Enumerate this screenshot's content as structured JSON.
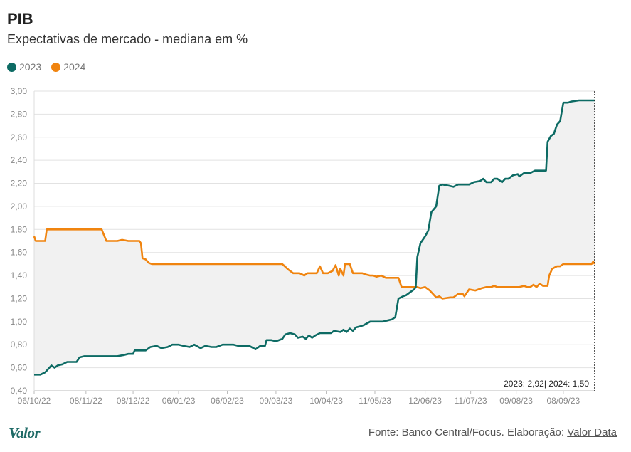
{
  "header": {
    "title": "PIB",
    "subtitle": "Expectativas de mercado - mediana em %"
  },
  "colors": {
    "series_2023": "#0d6b64",
    "series_2024": "#f0840f",
    "fill_between": "#f1f1f1",
    "grid": "#e2e2e2",
    "axis_text": "#888888"
  },
  "footer": {
    "logo": "Valor",
    "source_prefix": "Fonte: Banco Central/Focus. Elaboração: ",
    "source_link": "Valor Data"
  },
  "chart_data": {
    "type": "line",
    "title": "PIB",
    "subtitle": "Expectativas de mercado - mediana em %",
    "grid": true,
    "legend_position": "top-left",
    "ylim": [
      0.4,
      3.0
    ],
    "yticks": [
      "0,40",
      "0,60",
      "0,80",
      "1,00",
      "1,20",
      "1,40",
      "1,60",
      "1,80",
      "2,00",
      "2,20",
      "2,40",
      "2,60",
      "2,80",
      "3,00"
    ],
    "xticks": [
      "06/10/22",
      "08/11/22",
      "08/12/22",
      "06/01/23",
      "06/02/23",
      "09/03/23",
      "10/04/23",
      "11/05/23",
      "12/06/23",
      "11/07/23",
      "09/08/23",
      "08/09/23"
    ],
    "x_range": [
      "2022-10-06",
      "2023-09-28"
    ],
    "annotation": "2023: 2,92| 2024: 1,50",
    "series": [
      {
        "name": "2023",
        "points": [
          [
            "2022-10-06",
            0.54
          ],
          [
            "2022-10-10",
            0.54
          ],
          [
            "2022-10-13",
            0.56
          ],
          [
            "2022-10-17",
            0.62
          ],
          [
            "2022-10-19",
            0.6
          ],
          [
            "2022-10-21",
            0.62
          ],
          [
            "2022-10-24",
            0.63
          ],
          [
            "2022-10-27",
            0.65
          ],
          [
            "2022-10-31",
            0.65
          ],
          [
            "2022-11-02",
            0.65
          ],
          [
            "2022-11-04",
            0.69
          ],
          [
            "2022-11-07",
            0.7
          ],
          [
            "2022-11-14",
            0.7
          ],
          [
            "2022-11-21",
            0.7
          ],
          [
            "2022-11-28",
            0.7
          ],
          [
            "2022-12-02",
            0.71
          ],
          [
            "2022-12-05",
            0.72
          ],
          [
            "2022-12-08",
            0.72
          ],
          [
            "2022-12-09",
            0.75
          ],
          [
            "2022-12-12",
            0.75
          ],
          [
            "2022-12-16",
            0.75
          ],
          [
            "2022-12-19",
            0.78
          ],
          [
            "2022-12-23",
            0.79
          ],
          [
            "2022-12-26",
            0.77
          ],
          [
            "2022-12-30",
            0.78
          ],
          [
            "2023-01-02",
            0.8
          ],
          [
            "2023-01-06",
            0.8
          ],
          [
            "2023-01-09",
            0.79
          ],
          [
            "2023-01-13",
            0.78
          ],
          [
            "2023-01-16",
            0.8
          ],
          [
            "2023-01-20",
            0.77
          ],
          [
            "2023-01-23",
            0.79
          ],
          [
            "2023-01-27",
            0.78
          ],
          [
            "2023-01-30",
            0.78
          ],
          [
            "2023-02-03",
            0.8
          ],
          [
            "2023-02-06",
            0.8
          ],
          [
            "2023-02-10",
            0.8
          ],
          [
            "2023-02-13",
            0.79
          ],
          [
            "2023-02-17",
            0.79
          ],
          [
            "2023-02-20",
            0.79
          ],
          [
            "2023-02-24",
            0.76
          ],
          [
            "2023-02-27",
            0.79
          ],
          [
            "2023-03-02",
            0.79
          ],
          [
            "2023-03-03",
            0.84
          ],
          [
            "2023-03-06",
            0.84
          ],
          [
            "2023-03-09",
            0.83
          ],
          [
            "2023-03-13",
            0.85
          ],
          [
            "2023-03-15",
            0.89
          ],
          [
            "2023-03-18",
            0.9
          ],
          [
            "2023-03-21",
            0.89
          ],
          [
            "2023-03-23",
            0.86
          ],
          [
            "2023-03-26",
            0.87
          ],
          [
            "2023-03-28",
            0.85
          ],
          [
            "2023-03-30",
            0.88
          ],
          [
            "2023-04-01",
            0.86
          ],
          [
            "2023-04-03",
            0.88
          ],
          [
            "2023-04-06",
            0.9
          ],
          [
            "2023-04-10",
            0.9
          ],
          [
            "2023-04-13",
            0.9
          ],
          [
            "2023-04-15",
            0.92
          ],
          [
            "2023-04-19",
            0.91
          ],
          [
            "2023-04-21",
            0.93
          ],
          [
            "2023-04-23",
            0.91
          ],
          [
            "2023-04-25",
            0.94
          ],
          [
            "2023-04-27",
            0.92
          ],
          [
            "2023-04-29",
            0.95
          ],
          [
            "2023-05-02",
            0.96
          ],
          [
            "2023-05-04",
            0.97
          ],
          [
            "2023-05-08",
            1.0
          ],
          [
            "2023-05-12",
            1.0
          ],
          [
            "2023-05-16",
            1.0
          ],
          [
            "2023-05-19",
            1.01
          ],
          [
            "2023-05-22",
            1.02
          ],
          [
            "2023-05-24",
            1.04
          ],
          [
            "2023-05-26",
            1.2
          ],
          [
            "2023-05-29",
            1.22
          ],
          [
            "2023-05-31",
            1.23
          ],
          [
            "2023-06-03",
            1.26
          ],
          [
            "2023-06-05",
            1.28
          ],
          [
            "2023-06-06",
            1.3
          ],
          [
            "2023-06-07",
            1.56
          ],
          [
            "2023-06-09",
            1.68
          ],
          [
            "2023-06-12",
            1.74
          ],
          [
            "2023-06-14",
            1.79
          ],
          [
            "2023-06-16",
            1.95
          ],
          [
            "2023-06-19",
            2.0
          ],
          [
            "2023-06-21",
            2.18
          ],
          [
            "2023-06-23",
            2.19
          ],
          [
            "2023-06-27",
            2.18
          ],
          [
            "2023-06-30",
            2.17
          ],
          [
            "2023-07-03",
            2.19
          ],
          [
            "2023-07-07",
            2.19
          ],
          [
            "2023-07-10",
            2.19
          ],
          [
            "2023-07-13",
            2.21
          ],
          [
            "2023-07-17",
            2.22
          ],
          [
            "2023-07-19",
            2.24
          ],
          [
            "2023-07-21",
            2.21
          ],
          [
            "2023-07-24",
            2.21
          ],
          [
            "2023-07-26",
            2.24
          ],
          [
            "2023-07-28",
            2.24
          ],
          [
            "2023-07-31",
            2.21
          ],
          [
            "2023-08-02",
            2.24
          ],
          [
            "2023-08-04",
            2.24
          ],
          [
            "2023-08-07",
            2.27
          ],
          [
            "2023-08-10",
            2.28
          ],
          [
            "2023-08-11",
            2.26
          ],
          [
            "2023-08-14",
            2.29
          ],
          [
            "2023-08-18",
            2.29
          ],
          [
            "2023-08-21",
            2.31
          ],
          [
            "2023-08-25",
            2.31
          ],
          [
            "2023-08-28",
            2.31
          ],
          [
            "2023-08-29",
            2.56
          ],
          [
            "2023-08-31",
            2.61
          ],
          [
            "2023-09-02",
            2.63
          ],
          [
            "2023-09-04",
            2.71
          ],
          [
            "2023-09-06",
            2.74
          ],
          [
            "2023-09-08",
            2.9
          ],
          [
            "2023-09-11",
            2.9
          ],
          [
            "2023-09-13",
            2.91
          ],
          [
            "2023-09-18",
            2.92
          ],
          [
            "2023-09-28",
            2.92
          ]
        ]
      },
      {
        "name": "2024",
        "points": [
          [
            "2022-10-06",
            1.74
          ],
          [
            "2022-10-07",
            1.7
          ],
          [
            "2022-10-13",
            1.7
          ],
          [
            "2022-10-14",
            1.8
          ],
          [
            "2022-11-18",
            1.8
          ],
          [
            "2022-11-21",
            1.7
          ],
          [
            "2022-11-25",
            1.7
          ],
          [
            "2022-11-28",
            1.7
          ],
          [
            "2022-12-01",
            1.71
          ],
          [
            "2022-12-05",
            1.7
          ],
          [
            "2022-12-09",
            1.7
          ],
          [
            "2022-12-12",
            1.7
          ],
          [
            "2022-12-13",
            1.68
          ],
          [
            "2022-12-14",
            1.55
          ],
          [
            "2022-12-16",
            1.54
          ],
          [
            "2022-12-18",
            1.51
          ],
          [
            "2022-12-20",
            1.5
          ],
          [
            "2023-01-15",
            1.5
          ],
          [
            "2023-02-15",
            1.5
          ],
          [
            "2023-03-13",
            1.5
          ],
          [
            "2023-03-17",
            1.45
          ],
          [
            "2023-03-20",
            1.42
          ],
          [
            "2023-03-24",
            1.42
          ],
          [
            "2023-03-27",
            1.4
          ],
          [
            "2023-03-29",
            1.42
          ],
          [
            "2023-04-01",
            1.42
          ],
          [
            "2023-04-04",
            1.42
          ],
          [
            "2023-04-06",
            1.48
          ],
          [
            "2023-04-08",
            1.42
          ],
          [
            "2023-04-11",
            1.42
          ],
          [
            "2023-04-14",
            1.44
          ],
          [
            "2023-04-16",
            1.49
          ],
          [
            "2023-04-18",
            1.4
          ],
          [
            "2023-04-19",
            1.46
          ],
          [
            "2023-04-21",
            1.4
          ],
          [
            "2023-04-22",
            1.5
          ],
          [
            "2023-04-25",
            1.5
          ],
          [
            "2023-04-27",
            1.42
          ],
          [
            "2023-05-03",
            1.42
          ],
          [
            "2023-05-05",
            1.41
          ],
          [
            "2023-05-08",
            1.4
          ],
          [
            "2023-05-10",
            1.4
          ],
          [
            "2023-05-12",
            1.39
          ],
          [
            "2023-05-15",
            1.4
          ],
          [
            "2023-05-18",
            1.38
          ],
          [
            "2023-05-22",
            1.38
          ],
          [
            "2023-05-26",
            1.38
          ],
          [
            "2023-05-28",
            1.3
          ],
          [
            "2023-06-02",
            1.3
          ],
          [
            "2023-06-07",
            1.3
          ],
          [
            "2023-06-09",
            1.29
          ],
          [
            "2023-06-12",
            1.3
          ],
          [
            "2023-06-15",
            1.27
          ],
          [
            "2023-06-19",
            1.21
          ],
          [
            "2023-06-21",
            1.22
          ],
          [
            "2023-06-23",
            1.2
          ],
          [
            "2023-06-28",
            1.21
          ],
          [
            "2023-06-30",
            1.21
          ],
          [
            "2023-07-03",
            1.24
          ],
          [
            "2023-07-06",
            1.24
          ],
          [
            "2023-07-07",
            1.22
          ],
          [
            "2023-07-10",
            1.28
          ],
          [
            "2023-07-14",
            1.27
          ],
          [
            "2023-07-18",
            1.29
          ],
          [
            "2023-07-21",
            1.3
          ],
          [
            "2023-07-24",
            1.3
          ],
          [
            "2023-07-26",
            1.31
          ],
          [
            "2023-07-28",
            1.3
          ],
          [
            "2023-08-04",
            1.3
          ],
          [
            "2023-08-11",
            1.3
          ],
          [
            "2023-08-14",
            1.31
          ],
          [
            "2023-08-16",
            1.3
          ],
          [
            "2023-08-18",
            1.3
          ],
          [
            "2023-08-20",
            1.32
          ],
          [
            "2023-08-22",
            1.3
          ],
          [
            "2023-08-24",
            1.33
          ],
          [
            "2023-08-26",
            1.31
          ],
          [
            "2023-08-29",
            1.31
          ],
          [
            "2023-08-30",
            1.4
          ],
          [
            "2023-09-01",
            1.46
          ],
          [
            "2023-09-04",
            1.48
          ],
          [
            "2023-09-06",
            1.48
          ],
          [
            "2023-09-08",
            1.5
          ],
          [
            "2023-09-15",
            1.5
          ],
          [
            "2023-09-22",
            1.5
          ],
          [
            "2023-09-26",
            1.5
          ],
          [
            "2023-09-27",
            1.52
          ],
          [
            "2023-09-28",
            1.5
          ]
        ]
      }
    ]
  }
}
